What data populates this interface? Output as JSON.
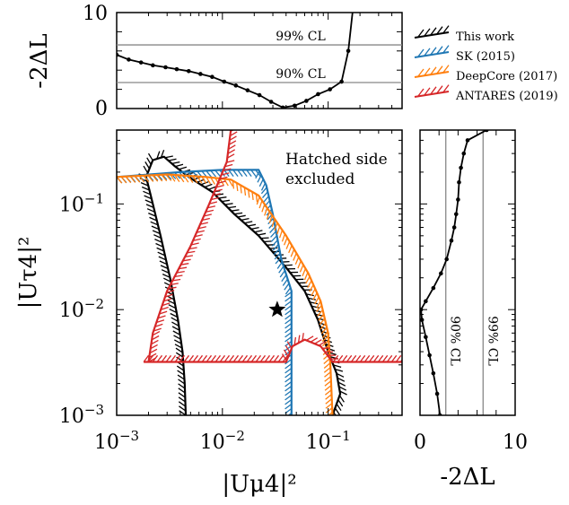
{
  "chart_data": [
    {
      "type": "line",
      "panel": "top",
      "ylabel": "-2ΔL",
      "xscale": "log",
      "xlim": [
        0.001,
        0.5
      ],
      "ylim": [
        0,
        10
      ],
      "yticks": [
        "0",
        "10"
      ],
      "series": [
        {
          "name": "This work",
          "x": [
            0.001,
            0.0013,
            0.0017,
            0.0022,
            0.0029,
            0.0037,
            0.0048,
            0.0062,
            0.008,
            0.0104,
            0.0134,
            0.0173,
            0.0224,
            0.0289,
            0.0373,
            0.0482,
            0.0622,
            0.0803,
            0.104,
            0.134,
            0.155,
            0.17
          ],
          "y": [
            5.6,
            5.1,
            4.8,
            4.5,
            4.3,
            4.1,
            3.9,
            3.6,
            3.3,
            2.8,
            2.4,
            1.9,
            1.4,
            0.7,
            0.1,
            0.3,
            0.8,
            1.5,
            2.0,
            2.8,
            6.0,
            10.0
          ]
        }
      ],
      "reference_lines": [
        {
          "label": "99% CL",
          "y": 6.63
        },
        {
          "label": "90% CL",
          "y": 2.71
        }
      ]
    },
    {
      "type": "line",
      "panel": "main",
      "xlabel": "|Uμ4|²",
      "ylabel": "|Uτ4|²",
      "xscale": "log",
      "yscale": "log",
      "xlim": [
        0.001,
        0.5
      ],
      "ylim": [
        0.001,
        0.5
      ],
      "xticks": [
        {
          "base": "10",
          "exp": "−3"
        },
        {
          "base": "10",
          "exp": "−2"
        },
        {
          "base": "10",
          "exp": "−1"
        }
      ],
      "yticks": [
        {
          "base": "10",
          "exp": "−3"
        },
        {
          "base": "10",
          "exp": "−2"
        },
        {
          "base": "10",
          "exp": "−1"
        }
      ],
      "annotation": [
        "Hatched side",
        "excluded"
      ],
      "best_fit": {
        "x": 0.033,
        "y": 0.01
      },
      "series": [
        {
          "name": "This work",
          "color": "#000000",
          "segments": [
            [
              [
                0.0045,
                0.001
              ],
              [
                0.0044,
                0.002
              ],
              [
                0.0042,
                0.004
              ],
              [
                0.0038,
                0.008
              ],
              [
                0.0032,
                0.02
              ],
              [
                0.0026,
                0.05
              ],
              [
                0.0021,
                0.12
              ],
              [
                0.0019,
                0.18
              ],
              [
                0.0022,
                0.26
              ],
              [
                0.0028,
                0.28
              ],
              [
                0.0035,
                0.23
              ],
              [
                0.0048,
                0.18
              ],
              [
                0.008,
                0.13
              ],
              [
                0.013,
                0.08
              ],
              [
                0.022,
                0.05
              ],
              [
                0.04,
                0.025
              ],
              [
                0.06,
                0.015
              ],
              [
                0.08,
                0.008
              ],
              [
                0.1,
                0.004
              ],
              [
                0.12,
                0.0025
              ],
              [
                0.13,
                0.0016
              ],
              [
                0.11,
                0.001
              ]
            ]
          ]
        },
        {
          "name": "SK (2015)",
          "color": "#1f77b4",
          "segments": [
            [
              [
                0.001,
                0.18
              ],
              [
                0.004,
                0.2
              ],
              [
                0.01,
                0.21
              ],
              [
                0.022,
                0.21
              ],
              [
                0.026,
                0.15
              ],
              [
                0.03,
                0.08
              ],
              [
                0.036,
                0.03
              ],
              [
                0.045,
                0.015
              ],
              [
                0.045,
                0.006
              ],
              [
                0.045,
                0.001
              ]
            ]
          ]
        },
        {
          "name": "DeepCore (2017)",
          "color": "#ff7f0e",
          "segments": [
            [
              [
                0.001,
                0.18
              ],
              [
                0.003,
                0.19
              ],
              [
                0.007,
                0.18
              ],
              [
                0.012,
                0.17
              ],
              [
                0.022,
                0.12
              ],
              [
                0.04,
                0.05
              ],
              [
                0.065,
                0.022
              ],
              [
                0.085,
                0.012
              ],
              [
                0.1,
                0.006
              ],
              [
                0.105,
                0.003
              ],
              [
                0.11,
                0.001
              ]
            ]
          ]
        },
        {
          "name": "ANTARES (2019)",
          "color": "#d62728",
          "segments": [
            [
              [
                0.002,
                0.0032
              ],
              [
                0.0022,
                0.006
              ],
              [
                0.003,
                0.015
              ],
              [
                0.005,
                0.04
              ],
              [
                0.0075,
                0.1
              ],
              [
                0.011,
                0.25
              ],
              [
                0.012,
                0.5
              ]
            ],
            [
              [
                0.0018,
                0.0032
              ],
              [
                0.04,
                0.0032
              ],
              [
                0.046,
                0.0045
              ],
              [
                0.06,
                0.0052
              ],
              [
                0.085,
                0.0045
              ],
              [
                0.11,
                0.0032
              ],
              [
                0.5,
                0.0032
              ]
            ]
          ]
        }
      ]
    },
    {
      "type": "line",
      "panel": "right",
      "xlabel": "-2ΔL",
      "yscale": "log",
      "xlim": [
        0,
        10
      ],
      "ylim": [
        0.001,
        0.5
      ],
      "xticks": [
        "0",
        "10"
      ],
      "reference_lines": [
        {
          "label": "90% CL",
          "x": 2.71
        },
        {
          "label": "99% CL",
          "x": 6.63
        }
      ],
      "series": [
        {
          "name": "This work",
          "x": [
            7.0,
            5.0,
            4.6,
            4.3,
            4.1,
            4.0,
            3.8,
            3.6,
            3.3,
            2.8,
            2.2,
            1.4,
            0.6,
            0.1,
            0.2,
            0.6,
            1.0,
            1.4,
            1.8,
            2.1
          ],
          "y": [
            0.5,
            0.4,
            0.3,
            0.22,
            0.16,
            0.11,
            0.08,
            0.06,
            0.045,
            0.03,
            0.022,
            0.016,
            0.012,
            0.01,
            0.008,
            0.0055,
            0.0037,
            0.0025,
            0.0016,
            0.001
          ]
        }
      ]
    }
  ],
  "legend": {
    "placement": "top-right",
    "entries": [
      {
        "label": "This work",
        "color": "#000000"
      },
      {
        "label": "SK (2015)",
        "color": "#1f77b4"
      },
      {
        "label": "DeepCore (2017)",
        "color": "#ff7f0e"
      },
      {
        "label": "ANTARES (2019)",
        "color": "#d62728"
      }
    ]
  }
}
